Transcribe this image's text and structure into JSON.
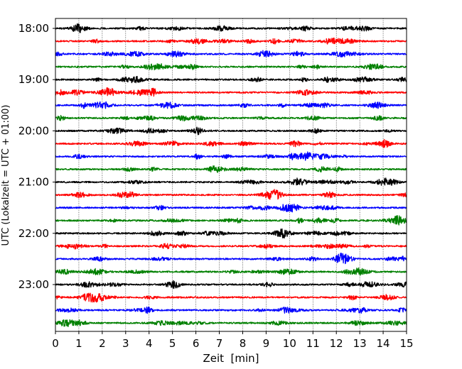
{
  "chart_data": {
    "type": "line",
    "subtype": "seismogram-helicorder",
    "xlabel": "Zeit  [min]",
    "ylabel": "UTC (Lokalzeit = UTC + 01:00)",
    "xlim": [
      0,
      15
    ],
    "x_ticks": [
      "0",
      "1",
      "2",
      "3",
      "4",
      "5",
      "6",
      "7",
      "8",
      "9",
      "10",
      "11",
      "12",
      "13",
      "14",
      "15"
    ],
    "y_tick_labels": [
      "18:00",
      "19:00",
      "20:00",
      "21:00",
      "22:00",
      "23:00"
    ],
    "trace_interval_min": 15,
    "time_range": [
      "18:00",
      "24:00"
    ],
    "grid": "vertical dotted at each minute",
    "trace_colors": [
      "#000000",
      "#ff0000",
      "#0000ff",
      "#008000"
    ],
    "series": [
      {
        "start": "18:00",
        "color": "#000000"
      },
      {
        "start": "18:15",
        "color": "#ff0000"
      },
      {
        "start": "18:30",
        "color": "#0000ff"
      },
      {
        "start": "18:45",
        "color": "#008000"
      },
      {
        "start": "19:00",
        "color": "#000000"
      },
      {
        "start": "19:15",
        "color": "#ff0000"
      },
      {
        "start": "19:30",
        "color": "#0000ff"
      },
      {
        "start": "19:45",
        "color": "#008000"
      },
      {
        "start": "20:00",
        "color": "#000000"
      },
      {
        "start": "20:15",
        "color": "#ff0000"
      },
      {
        "start": "20:30",
        "color": "#0000ff"
      },
      {
        "start": "20:45",
        "color": "#008000"
      },
      {
        "start": "21:00",
        "color": "#000000"
      },
      {
        "start": "21:15",
        "color": "#ff0000"
      },
      {
        "start": "21:30",
        "color": "#0000ff"
      },
      {
        "start": "21:45",
        "color": "#008000"
      },
      {
        "start": "22:00",
        "color": "#000000"
      },
      {
        "start": "22:15",
        "color": "#ff0000"
      },
      {
        "start": "22:30",
        "color": "#0000ff"
      },
      {
        "start": "22:45",
        "color": "#008000"
      },
      {
        "start": "23:00",
        "color": "#000000"
      },
      {
        "start": "23:15",
        "color": "#ff0000"
      },
      {
        "start": "23:30",
        "color": "#0000ff"
      },
      {
        "start": "23:45",
        "color": "#008000"
      }
    ]
  }
}
